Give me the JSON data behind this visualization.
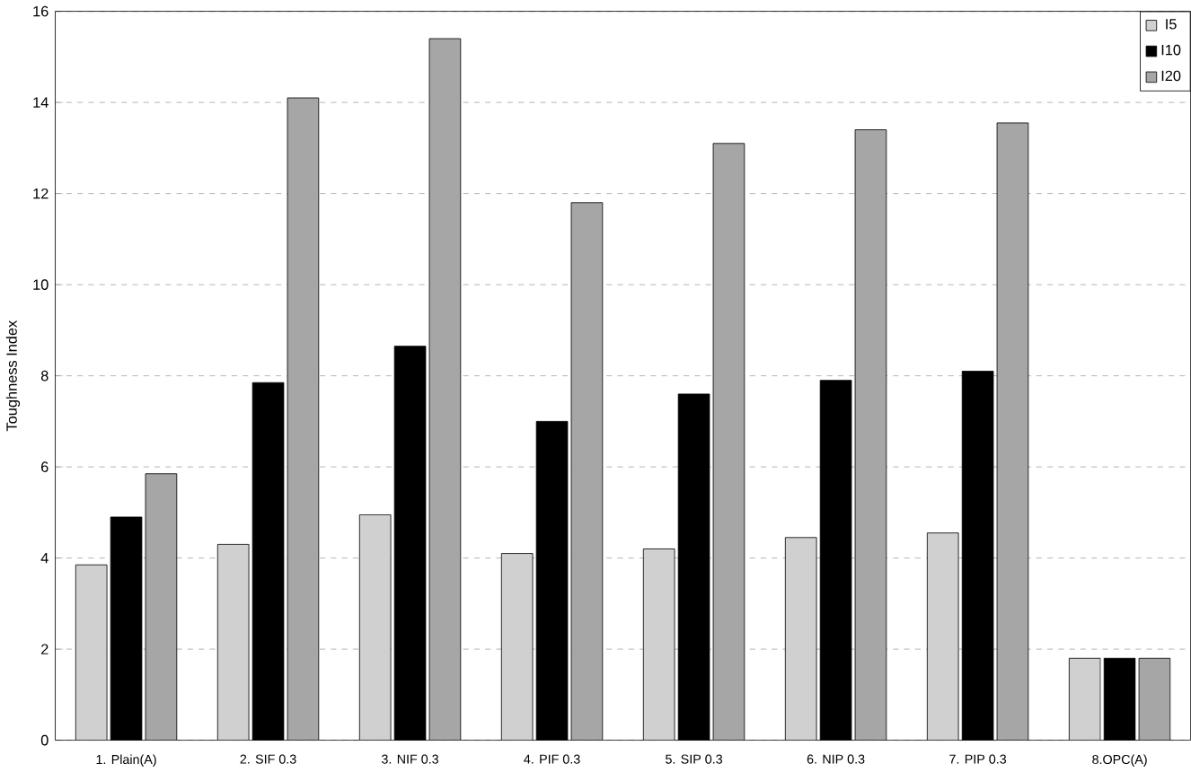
{
  "chart_data": {
    "type": "bar",
    "ylabel": "Toughness Index",
    "categories": [
      "1. Plain(A)",
      "2. SIF 0.3",
      "3. NIF 0.3",
      "4. PIF 0.3",
      "5. SIP 0.3",
      "6. NIP 0.3",
      "7. PIP 0.3",
      "8.OPC(A)"
    ],
    "series": [
      {
        "name": "I5",
        "color": "#d0d0d0",
        "values": [
          3.85,
          4.3,
          4.95,
          4.1,
          4.2,
          4.45,
          4.55,
          1.8
        ]
      },
      {
        "name": "I10",
        "color": "#000000",
        "values": [
          4.9,
          7.85,
          8.65,
          7.0,
          7.6,
          7.9,
          8.1,
          1.8
        ]
      },
      {
        "name": "I20",
        "color": "#a6a6a6",
        "values": [
          5.85,
          14.1,
          15.4,
          11.8,
          13.1,
          13.4,
          13.55,
          1.8
        ]
      }
    ],
    "ylim": [
      0,
      16
    ],
    "yticks": [
      0,
      2,
      4,
      6,
      8,
      10,
      12,
      14,
      16
    ],
    "grid": "y",
    "legend": "top right"
  }
}
